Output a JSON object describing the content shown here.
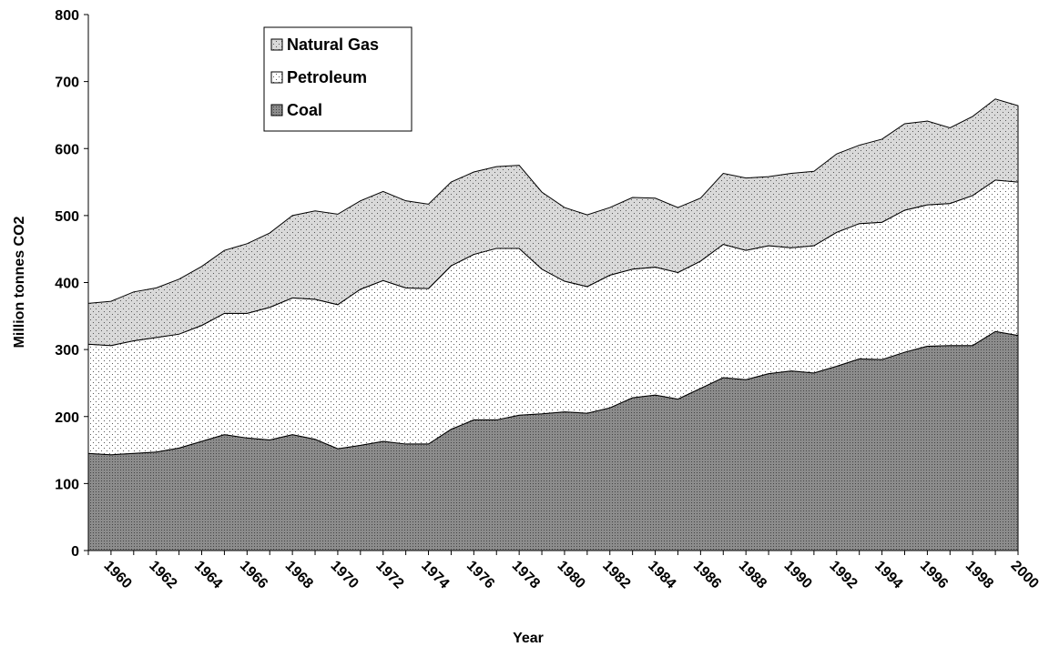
{
  "chart_data": {
    "type": "stacked_area",
    "x_label": "Year",
    "y_label": "Million tonnes CO2",
    "categories": [
      null,
      "1960",
      null,
      "1962",
      null,
      "1964",
      null,
      "1966",
      null,
      "1968",
      null,
      "1970",
      null,
      "1972",
      null,
      "1974",
      null,
      "1976",
      null,
      "1978",
      null,
      "1980",
      null,
      "1982",
      null,
      "1984",
      null,
      "1986",
      null,
      "1988",
      null,
      "1990",
      null,
      "1992",
      null,
      "1994",
      null,
      "1996",
      null,
      "1998",
      null,
      "2000"
    ],
    "series": [
      {
        "name": "Coal",
        "color": "#8c8c8c",
        "values": [
          145,
          143,
          145,
          147,
          153,
          163,
          173,
          168,
          165,
          173,
          166,
          152,
          157,
          163,
          159,
          159,
          181,
          195,
          195,
          202,
          204,
          207,
          205,
          213,
          228,
          232,
          226,
          242,
          258,
          255,
          264,
          268,
          265,
          275,
          286,
          285,
          296,
          305,
          306,
          306,
          327,
          321
        ]
      },
      {
        "name": "Petroleum",
        "color": "#ffffff",
        "values": [
          163,
          163,
          168,
          171,
          170,
          173,
          181,
          186,
          198,
          204,
          209,
          215,
          233,
          240,
          233,
          232,
          244,
          247,
          256,
          249,
          216,
          195,
          189,
          198,
          192,
          191,
          189,
          190,
          199,
          193,
          191,
          184,
          190,
          200,
          202,
          205,
          212,
          211,
          212,
          224,
          226,
          229
        ]
      },
      {
        "name": "Natural Gas",
        "color": "#d9d9d9",
        "values": [
          61,
          66,
          73,
          74,
          82,
          88,
          94,
          104,
          111,
          123,
          132,
          135,
          132,
          133,
          130,
          126,
          125,
          123,
          122,
          124,
          115,
          110,
          107,
          101,
          107,
          103,
          97,
          94,
          106,
          108,
          103,
          111,
          111,
          117,
          117,
          124,
          129,
          125,
          113,
          118,
          121,
          114
        ]
      }
    ],
    "ylim": [
      0,
      800
    ],
    "yticks": [
      0,
      100,
      200,
      300,
      400,
      500,
      600,
      700,
      800
    ],
    "legend": "upper-left"
  }
}
